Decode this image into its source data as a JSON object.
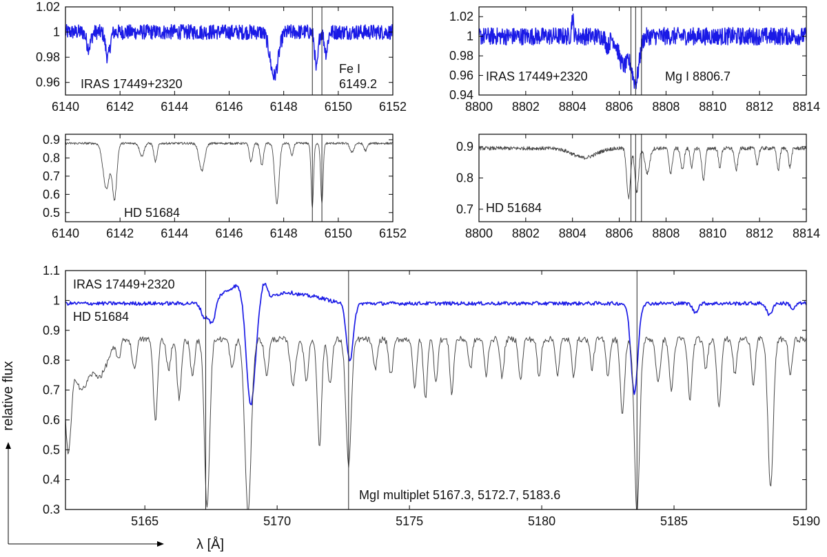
{
  "figure": {
    "ylabel": "relative flux",
    "xlabel": "λ [Å]"
  },
  "colors": {
    "star": "#1a1ae6",
    "reference": "#444444",
    "axis": "#000000",
    "marker": "#222222"
  },
  "chart_data": [
    {
      "id": "fe-iras",
      "type": "line",
      "xlim": [
        6140,
        6152
      ],
      "ylim": [
        0.95,
        1.02
      ],
      "xticks": [
        6140,
        6142,
        6144,
        6146,
        6148,
        6150,
        6152
      ],
      "yticks": [
        0.96,
        0.98,
        1,
        1.02
      ],
      "ytick_labels": [
        "0.96",
        "0.98",
        "1",
        "1.02"
      ],
      "markers": [
        6149.05,
        6149.4
      ],
      "annotations": [
        "IRAS 17449+2320",
        "Fe I",
        "6149.2"
      ],
      "grid": false,
      "series": [
        {
          "name": "IRAS 17449+2320",
          "color": "#1a1ae6",
          "baseline": 1.0,
          "noise": 0.006,
          "lines": [
            {
              "center": 6140.85,
              "depth": 0.012,
              "width": 0.08
            },
            {
              "center": 6141.55,
              "depth": 0.02,
              "width": 0.08
            },
            {
              "center": 6147.65,
              "depth": 0.035,
              "width": 0.15
            },
            {
              "center": 6149.2,
              "depth": 0.03,
              "width": 0.06
            },
            {
              "center": 6149.55,
              "depth": 0.016,
              "width": 0.06
            }
          ]
        }
      ]
    },
    {
      "id": "fe-hd",
      "type": "line",
      "xlim": [
        6140,
        6152
      ],
      "ylim": [
        0.45,
        0.93
      ],
      "xticks": [
        6140,
        6142,
        6144,
        6146,
        6148,
        6150,
        6152
      ],
      "yticks": [
        0.5,
        0.6,
        0.7,
        0.8,
        0.9
      ],
      "ytick_labels": [
        "0.5",
        "0.6",
        "0.7",
        "0.8",
        "0.9"
      ],
      "markers": [
        6149.05,
        6149.4
      ],
      "annotations": [
        "HD 51684"
      ],
      "grid": false,
      "series": [
        {
          "name": "HD 51684",
          "color": "#444444",
          "baseline": 0.88,
          "noise": 0.006,
          "lines": [
            {
              "center": 6141.5,
              "depth": 0.25,
              "width": 0.12
            },
            {
              "center": 6141.8,
              "depth": 0.3,
              "width": 0.08
            },
            {
              "center": 6142.8,
              "depth": 0.07,
              "width": 0.08
            },
            {
              "center": 6143.3,
              "depth": 0.1,
              "width": 0.06
            },
            {
              "center": 6145.0,
              "depth": 0.15,
              "width": 0.1
            },
            {
              "center": 6146.8,
              "depth": 0.1,
              "width": 0.06
            },
            {
              "center": 6147.2,
              "depth": 0.12,
              "width": 0.06
            },
            {
              "center": 6147.75,
              "depth": 0.33,
              "width": 0.08
            },
            {
              "center": 6148.3,
              "depth": 0.07,
              "width": 0.05
            },
            {
              "center": 6149.05,
              "depth": 0.35,
              "width": 0.045
            },
            {
              "center": 6149.4,
              "depth": 0.33,
              "width": 0.045
            },
            {
              "center": 6150.5,
              "depth": 0.05,
              "width": 0.07
            },
            {
              "center": 6151.0,
              "depth": 0.04,
              "width": 0.06
            }
          ]
        }
      ]
    },
    {
      "id": "mg-iras",
      "type": "line",
      "xlim": [
        8800,
        8814
      ],
      "ylim": [
        0.94,
        1.03
      ],
      "xticks": [
        8800,
        8802,
        8804,
        8806,
        8808,
        8810,
        8812,
        8814
      ],
      "yticks": [
        0.94,
        0.96,
        0.98,
        1,
        1.02
      ],
      "ytick_labels": [
        "0.94",
        "0.96",
        "0.98",
        "1",
        "1.02"
      ],
      "markers": [
        8806.5,
        8806.7,
        8806.95
      ],
      "annotations": [
        "IRAS 17449+2320",
        "Mg I  8806.7"
      ],
      "grid": false,
      "series": [
        {
          "name": "IRAS 17449+2320",
          "color": "#1a1ae6",
          "baseline": 1.0,
          "noise": 0.009,
          "lines": [
            {
              "center": 8806.2,
              "depth": 0.03,
              "width": 0.22
            },
            {
              "center": 8806.7,
              "depth": 0.045,
              "width": 0.15
            },
            {
              "center": 8804.0,
              "depth": -0.02,
              "width": 0.04
            },
            {
              "center": 8805.5,
              "depth": 0.01,
              "width": 0.08
            }
          ]
        }
      ]
    },
    {
      "id": "mg-hd",
      "type": "line",
      "xlim": [
        8800,
        8814
      ],
      "ylim": [
        0.66,
        0.94
      ],
      "xticks": [
        8800,
        8802,
        8804,
        8806,
        8808,
        8810,
        8812,
        8814
      ],
      "yticks": [
        0.7,
        0.8,
        0.9
      ],
      "ytick_labels": [
        "0.7",
        "0.8",
        "0.9"
      ],
      "markers": [
        8806.5,
        8806.7,
        8806.95
      ],
      "annotations": [
        "HD 51684"
      ],
      "grid": false,
      "series": [
        {
          "name": "HD 51684",
          "color": "#444444",
          "baseline": 0.895,
          "noise": 0.006,
          "lines": [
            {
              "center": 8804.5,
              "depth": 0.03,
              "width": 0.5
            },
            {
              "center": 8806.4,
              "depth": 0.16,
              "width": 0.08
            },
            {
              "center": 8806.75,
              "depth": 0.14,
              "width": 0.08
            },
            {
              "center": 8807.2,
              "depth": 0.08,
              "width": 0.1
            },
            {
              "center": 8808.2,
              "depth": 0.08,
              "width": 0.07
            },
            {
              "center": 8808.7,
              "depth": 0.07,
              "width": 0.07
            },
            {
              "center": 8809.1,
              "depth": 0.06,
              "width": 0.06
            },
            {
              "center": 8809.6,
              "depth": 0.1,
              "width": 0.07
            },
            {
              "center": 8810.3,
              "depth": 0.06,
              "width": 0.06
            },
            {
              "center": 8811.0,
              "depth": 0.07,
              "width": 0.07
            },
            {
              "center": 8811.9,
              "depth": 0.05,
              "width": 0.06
            },
            {
              "center": 8812.8,
              "depth": 0.07,
              "width": 0.06
            },
            {
              "center": 8813.3,
              "depth": 0.06,
              "width": 0.06
            }
          ]
        }
      ]
    },
    {
      "id": "mgb-main",
      "type": "line",
      "xlim": [
        5162,
        5190
      ],
      "ylim": [
        0.3,
        1.1
      ],
      "xticks": [
        5165,
        5170,
        5175,
        5180,
        5185,
        5190
      ],
      "yticks": [
        0.3,
        0.4,
        0.5,
        0.6,
        0.7,
        0.8,
        0.9,
        1,
        1.1
      ],
      "ytick_labels": [
        "0.3",
        "0.4",
        "0.5",
        "0.6",
        "0.7",
        "0.8",
        "0.9",
        "1",
        "1.1"
      ],
      "markers": [
        5167.3,
        5172.7,
        5183.6
      ],
      "annotations": [
        "IRAS 17449+2320",
        "HD 51684",
        "MgI multiplet 5167.3, 5172.7, 5183.6"
      ],
      "grid": false,
      "series": [
        {
          "name": "IRAS 17449+2320",
          "color": "#1a1ae6",
          "baseline": 0.99,
          "noise": 0.006,
          "width": 1.7,
          "lines": [
            {
              "center": 5167.25,
              "depth": 0.05,
              "width": 0.12
            },
            {
              "center": 5167.55,
              "depth": 0.08,
              "width": 0.12
            },
            {
              "center": 5168.0,
              "depth": -0.03,
              "width": 0.4
            },
            {
              "center": 5168.6,
              "depth": -0.05,
              "width": 0.3
            },
            {
              "center": 5169.0,
              "depth": 0.36,
              "width": 0.17
            },
            {
              "center": 5169.5,
              "depth": -0.06,
              "width": 0.12
            },
            {
              "center": 5170.3,
              "depth": -0.035,
              "width": 0.5
            },
            {
              "center": 5171.4,
              "depth": -0.02,
              "width": 0.5
            },
            {
              "center": 5172.75,
              "depth": 0.19,
              "width": 0.13
            },
            {
              "center": 5183.5,
              "depth": 0.3,
              "width": 0.13
            },
            {
              "center": 5185.8,
              "depth": 0.03,
              "width": 0.1
            },
            {
              "center": 5188.6,
              "depth": 0.04,
              "width": 0.1
            },
            {
              "center": 5189.5,
              "depth": 0.02,
              "width": 0.08
            }
          ]
        },
        {
          "name": "HD 51684",
          "color": "#444444",
          "baseline": 0.87,
          "noise": 0.01,
          "width": 1,
          "lines": [
            {
              "center": 5162.1,
              "depth": 0.36,
              "width": 0.12
            },
            {
              "center": 5162.6,
              "depth": 0.16,
              "width": 0.25
            },
            {
              "center": 5163.3,
              "depth": 0.12,
              "width": 0.3
            },
            {
              "center": 5164.0,
              "depth": 0.06,
              "width": 0.08
            },
            {
              "center": 5164.6,
              "depth": 0.1,
              "width": 0.08
            },
            {
              "center": 5165.4,
              "depth": 0.27,
              "width": 0.08
            },
            {
              "center": 5165.9,
              "depth": 0.1,
              "width": 0.08
            },
            {
              "center": 5166.3,
              "depth": 0.2,
              "width": 0.08
            },
            {
              "center": 5166.8,
              "depth": 0.12,
              "width": 0.08
            },
            {
              "center": 5167.35,
              "depth": 0.56,
              "width": 0.1
            },
            {
              "center": 5168.3,
              "depth": 0.1,
              "width": 0.08
            },
            {
              "center": 5168.9,
              "depth": 0.58,
              "width": 0.12
            },
            {
              "center": 5169.6,
              "depth": 0.12,
              "width": 0.08
            },
            {
              "center": 5170.6,
              "depth": 0.15,
              "width": 0.1
            },
            {
              "center": 5171.1,
              "depth": 0.14,
              "width": 0.08
            },
            {
              "center": 5171.6,
              "depth": 0.36,
              "width": 0.08
            },
            {
              "center": 5172.0,
              "depth": 0.15,
              "width": 0.08
            },
            {
              "center": 5172.7,
              "depth": 0.42,
              "width": 0.1
            },
            {
              "center": 5173.7,
              "depth": 0.1,
              "width": 0.08
            },
            {
              "center": 5174.3,
              "depth": 0.12,
              "width": 0.08
            },
            {
              "center": 5175.2,
              "depth": 0.17,
              "width": 0.07
            },
            {
              "center": 5175.6,
              "depth": 0.2,
              "width": 0.07
            },
            {
              "center": 5176.0,
              "depth": 0.14,
              "width": 0.07
            },
            {
              "center": 5176.6,
              "depth": 0.18,
              "width": 0.07
            },
            {
              "center": 5177.3,
              "depth": 0.1,
              "width": 0.07
            },
            {
              "center": 5177.9,
              "depth": 0.12,
              "width": 0.07
            },
            {
              "center": 5178.5,
              "depth": 0.13,
              "width": 0.07
            },
            {
              "center": 5179.2,
              "depth": 0.14,
              "width": 0.07
            },
            {
              "center": 5179.9,
              "depth": 0.13,
              "width": 0.07
            },
            {
              "center": 5180.6,
              "depth": 0.12,
              "width": 0.07
            },
            {
              "center": 5181.2,
              "depth": 0.12,
              "width": 0.07
            },
            {
              "center": 5181.9,
              "depth": 0.1,
              "width": 0.07
            },
            {
              "center": 5182.5,
              "depth": 0.12,
              "width": 0.07
            },
            {
              "center": 5183.05,
              "depth": 0.25,
              "width": 0.08
            },
            {
              "center": 5183.6,
              "depth": 0.58,
              "width": 0.1
            },
            {
              "center": 5184.4,
              "depth": 0.15,
              "width": 0.08
            },
            {
              "center": 5184.9,
              "depth": 0.17,
              "width": 0.08
            },
            {
              "center": 5185.6,
              "depth": 0.2,
              "width": 0.08
            },
            {
              "center": 5186.2,
              "depth": 0.1,
              "width": 0.07
            },
            {
              "center": 5186.7,
              "depth": 0.22,
              "width": 0.08
            },
            {
              "center": 5187.3,
              "depth": 0.12,
              "width": 0.07
            },
            {
              "center": 5188.0,
              "depth": 0.15,
              "width": 0.07
            },
            {
              "center": 5188.65,
              "depth": 0.5,
              "width": 0.1
            },
            {
              "center": 5189.4,
              "depth": 0.12,
              "width": 0.07
            }
          ]
        }
      ]
    }
  ]
}
